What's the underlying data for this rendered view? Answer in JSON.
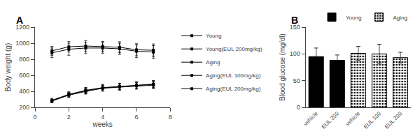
{
  "chart_data": [
    {
      "type": "line",
      "annotations": [
        "A"
      ],
      "xlabel": "weeks",
      "ylabel": "Body weight (g)",
      "x": [
        1,
        2,
        3,
        4,
        5,
        6,
        7
      ],
      "xlim": [
        0,
        8
      ],
      "xticks": [
        0,
        2,
        4,
        6,
        8
      ],
      "ylim": [
        200,
        1200
      ],
      "yticks": [
        200,
        400,
        600,
        800,
        1000,
        1200
      ],
      "grid": false,
      "legend": "right",
      "series": [
        {
          "name": "Young",
          "color": "#000000",
          "marker": "square",
          "line_style": "solid",
          "values": [
            880,
            925,
            940,
            940,
            930,
            900,
            890
          ],
          "errors": [
            60,
            75,
            70,
            65,
            70,
            80,
            80
          ]
        },
        {
          "name": "Young(EUL 200mg/kg)",
          "color": "#000000",
          "marker": "square",
          "line_style": "solid",
          "values": [
            905,
            955,
            965,
            960,
            950,
            918,
            912
          ],
          "errors": [
            55,
            65,
            68,
            62,
            68,
            75,
            78
          ]
        },
        {
          "name": "Aging",
          "color": "#000000",
          "marker": "square",
          "line_style": "solid",
          "values": [
            278,
            352,
            398,
            438,
            452,
            467,
            477
          ],
          "errors": [
            20,
            28,
            33,
            36,
            38,
            40,
            42
          ]
        },
        {
          "name": "Aging(EUL 100mg/kg)",
          "color": "#000000",
          "marker": "square",
          "line_style": "solid",
          "values": [
            282,
            358,
            408,
            442,
            458,
            472,
            485
          ],
          "errors": [
            22,
            30,
            34,
            37,
            39,
            41,
            43
          ]
        },
        {
          "name": "Aging(EUL 200mg/kg)",
          "color": "#000000",
          "marker": "square",
          "line_style": "solid",
          "values": [
            288,
            362,
            412,
            446,
            460,
            476,
            490
          ],
          "errors": [
            24,
            32,
            36,
            39,
            41,
            43,
            45
          ]
        }
      ]
    },
    {
      "type": "bar",
      "annotations": [
        "B"
      ],
      "ylabel": "Blood glucose (mg/dl)",
      "categories": [
        "vehicle",
        "EUL 200",
        "vehicle",
        "EUL 100",
        "EUL 200"
      ],
      "ylim": [
        0,
        150
      ],
      "yticks": [
        0,
        50,
        100,
        150
      ],
      "grid": false,
      "legend": "upper right",
      "series": [
        {
          "name": "Young",
          "color": "#000000",
          "values": [
            95,
            88,
            null,
            null,
            null
          ],
          "errors": [
            16,
            10,
            null,
            null,
            null
          ]
        },
        {
          "name": "Aging",
          "color": "#ffffff",
          "marker": "dots",
          "values": [
            null,
            null,
            101,
            100,
            93
          ],
          "errors": [
            null,
            null,
            13,
            18,
            10
          ]
        }
      ]
    }
  ]
}
